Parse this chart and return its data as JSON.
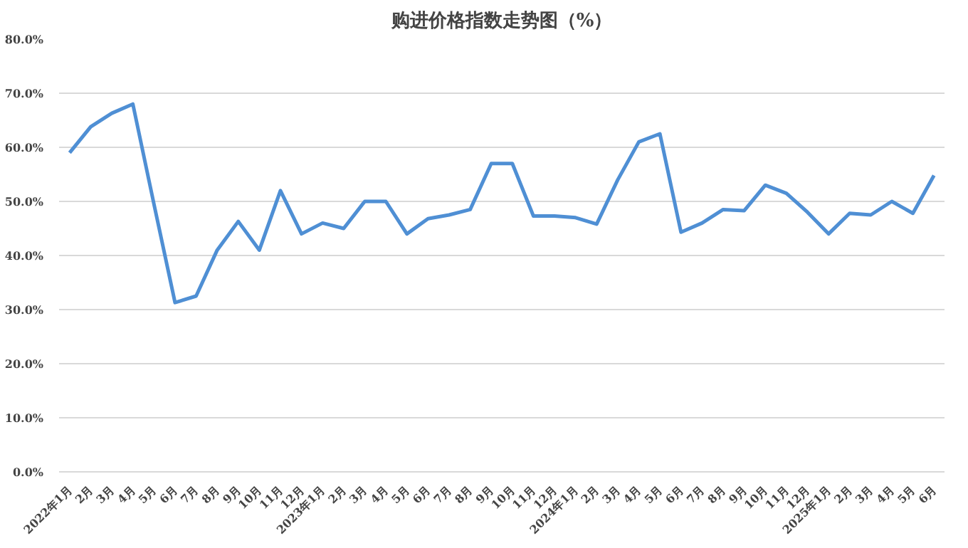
{
  "chart_data": {
    "type": "line",
    "title": "购进价格指数走势图（%）",
    "categories": [
      "2022年1月",
      "2月",
      "3月",
      "4月",
      "5月",
      "6月",
      "7月",
      "8月",
      "9月",
      "10月",
      "11月",
      "12月",
      "2023年1月",
      "2月",
      "3月",
      "4月",
      "5月",
      "6月",
      "7月",
      "8月",
      "9月",
      "10月",
      "11月",
      "12月",
      "2024年1月",
      "2月",
      "3月",
      "4月",
      "5月",
      "6月",
      "7月",
      "8月",
      "9月",
      "10月",
      "11月",
      "12月",
      "2025年1月",
      "2月",
      "3月",
      "4月",
      "5月",
      "6月"
    ],
    "series": [
      {
        "color": "#4f8fd4",
        "values": [
          59.0,
          63.8,
          66.3,
          68.0,
          49.5,
          31.3,
          32.5,
          41.0,
          46.3,
          41.0,
          52.0,
          44.0,
          46.0,
          45.0,
          50.0,
          50.0,
          44.0,
          46.8,
          47.5,
          48.5,
          57.0,
          57.0,
          47.3,
          47.3,
          47.0,
          45.8,
          54.0,
          61.0,
          62.5,
          44.3,
          46.0,
          48.5,
          48.3,
          53.0,
          51.5,
          48.0,
          44.0,
          47.8,
          47.5,
          50.0,
          47.8,
          54.8
        ]
      }
    ],
    "ylim": [
      0,
      80
    ],
    "yticks": [
      {
        "value": 0,
        "label": "0.0%"
      },
      {
        "value": 10,
        "label": "10.0%"
      },
      {
        "value": 20,
        "label": "20.0%"
      },
      {
        "value": 30,
        "label": "30.0%"
      },
      {
        "value": 40,
        "label": "40.0%"
      },
      {
        "value": 50,
        "label": "50.0%"
      },
      {
        "value": 60,
        "label": "60.0%"
      },
      {
        "value": 70,
        "label": "70.0%"
      },
      {
        "value": 80,
        "label": "80.0%"
      }
    ],
    "grid": "y",
    "marker": "none",
    "line_style": "solid"
  }
}
